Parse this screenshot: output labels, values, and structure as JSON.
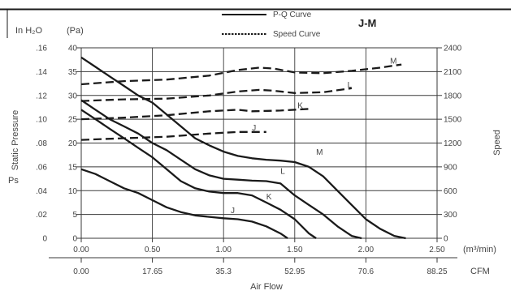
{
  "chart_data": {
    "type": "line",
    "title": "J-M",
    "legend": {
      "position": "top-center",
      "items": [
        {
          "label": "P-Q Curve",
          "style": "solid"
        },
        {
          "label": "Speed Curve",
          "style": "dotted"
        }
      ]
    },
    "unit_labels": {
      "inh2o": "In H₂O",
      "pa": "(Pa)",
      "m3min": "(m³/min)",
      "cfm": "CFM"
    },
    "xlabel": "Air Flow",
    "ylabel_left": [
      "Static Pressure",
      "Ps"
    ],
    "ylabel_right": "Speed",
    "x_ticks": [
      "0.00",
      "0.50",
      "1.00",
      "1.50",
      "2.00",
      "2.50"
    ],
    "x_ticks_cfm": [
      "0.00",
      "17.65",
      "35.3",
      "52.95",
      "70.6",
      "88.25"
    ],
    "y_ticks_pa": [
      "0",
      "5",
      "10",
      "15",
      "20",
      "25",
      "30",
      "35",
      "40"
    ],
    "y_ticks_inh2o": [
      "0",
      ".02",
      ".04",
      ".06",
      ".08",
      ".10",
      ".12",
      ".14",
      ".16"
    ],
    "y_ticks_speed": [
      "0",
      "300",
      "600",
      "900",
      "1200",
      "1500",
      "1800",
      "2100",
      "2400"
    ],
    "xlim": [
      0,
      2.5
    ],
    "ylim_pa": [
      0,
      40
    ],
    "ylim_speed": [
      0,
      2400
    ],
    "grid": true,
    "pq_series": [
      {
        "name": "M",
        "x": [
          0.0,
          0.1,
          0.2,
          0.3,
          0.4,
          0.5,
          0.6,
          0.7,
          0.8,
          0.9,
          1.0,
          1.1,
          1.2,
          1.3,
          1.4,
          1.5,
          1.6,
          1.7,
          1.8,
          1.9,
          2.0,
          2.1,
          2.2,
          2.28
        ],
        "y": [
          38.0,
          36.0,
          34.0,
          32.0,
          30.0,
          28.5,
          26.0,
          23.5,
          21.0,
          19.5,
          18.2,
          17.3,
          16.8,
          16.5,
          16.3,
          16.0,
          15.0,
          13.0,
          10.0,
          7.0,
          4.0,
          2.0,
          0.5,
          0.0
        ]
      },
      {
        "name": "L",
        "x": [
          0.0,
          0.1,
          0.2,
          0.3,
          0.4,
          0.5,
          0.6,
          0.7,
          0.8,
          0.9,
          1.0,
          1.1,
          1.2,
          1.3,
          1.4,
          1.5,
          1.6,
          1.7,
          1.8,
          1.9,
          1.97
        ],
        "y": [
          29.0,
          27.0,
          25.0,
          23.5,
          22.0,
          20.0,
          18.5,
          16.5,
          14.5,
          13.2,
          12.5,
          12.3,
          12.1,
          12.0,
          11.5,
          9.0,
          7.0,
          5.0,
          2.5,
          0.5,
          0.0
        ]
      },
      {
        "name": "K",
        "x": [
          0.0,
          0.1,
          0.2,
          0.3,
          0.4,
          0.5,
          0.6,
          0.7,
          0.8,
          0.9,
          1.0,
          1.1,
          1.2,
          1.3,
          1.4,
          1.5,
          1.6,
          1.65
        ],
        "y": [
          27.0,
          25.0,
          23.0,
          21.0,
          19.0,
          17.0,
          14.5,
          12.0,
          10.5,
          9.8,
          9.5,
          9.5,
          9.0,
          7.5,
          6.0,
          4.0,
          1.0,
          0.0
        ]
      },
      {
        "name": "J",
        "x": [
          0.0,
          0.1,
          0.2,
          0.3,
          0.4,
          0.5,
          0.6,
          0.7,
          0.8,
          0.9,
          1.0,
          1.1,
          1.2,
          1.3,
          1.4,
          1.45
        ],
        "y": [
          14.5,
          13.5,
          12.0,
          10.5,
          9.5,
          8.0,
          6.5,
          5.5,
          4.8,
          4.5,
          4.2,
          4.0,
          3.5,
          2.5,
          1.0,
          0.0
        ]
      }
    ],
    "speed_series": [
      {
        "name": "M",
        "x": [
          0.0,
          0.3,
          0.6,
          0.9,
          1.1,
          1.25,
          1.35,
          1.5,
          1.7,
          1.9,
          2.1,
          2.25
        ],
        "y": [
          1940,
          1980,
          2000,
          2050,
          2120,
          2150,
          2140,
          2090,
          2080,
          2110,
          2150,
          2190
        ]
      },
      {
        "name": "L",
        "x": [
          0.0,
          0.3,
          0.6,
          0.9,
          1.1,
          1.25,
          1.35,
          1.5,
          1.7,
          1.9
        ],
        "y": [
          1730,
          1750,
          1760,
          1800,
          1850,
          1870,
          1860,
          1830,
          1840,
          1890
        ]
      },
      {
        "name": "K",
        "x": [
          0.0,
          0.3,
          0.6,
          0.9,
          1.1,
          1.2,
          1.4,
          1.6
        ],
        "y": [
          1500,
          1520,
          1550,
          1600,
          1620,
          1600,
          1610,
          1630
        ]
      },
      {
        "name": "J",
        "x": [
          0.0,
          0.3,
          0.6,
          0.9,
          1.1,
          1.3
        ],
        "y": [
          1240,
          1260,
          1280,
          1320,
          1340,
          1340
        ]
      }
    ],
    "series_label_positions": {
      "pq": [
        {
          "name": "M",
          "x": 1.65,
          "y": 17.5
        },
        {
          "name": "L",
          "x": 1.4,
          "y": 13.5
        },
        {
          "name": "K",
          "x": 1.3,
          "y": 8.2
        },
        {
          "name": "J",
          "x": 1.05,
          "y": 5.3
        }
      ],
      "speed": [
        {
          "name": "M",
          "x": 2.17,
          "y": 2200
        },
        {
          "name": "L",
          "x": 1.87,
          "y": 1900
        },
        {
          "name": "K",
          "x": 1.52,
          "y": 1640
        },
        {
          "name": "J",
          "x": 1.2,
          "y": 1360
        }
      ]
    },
    "colors": {
      "line": "#1a1a1a",
      "grid": "#3a3a3a",
      "text": "#444444"
    }
  }
}
